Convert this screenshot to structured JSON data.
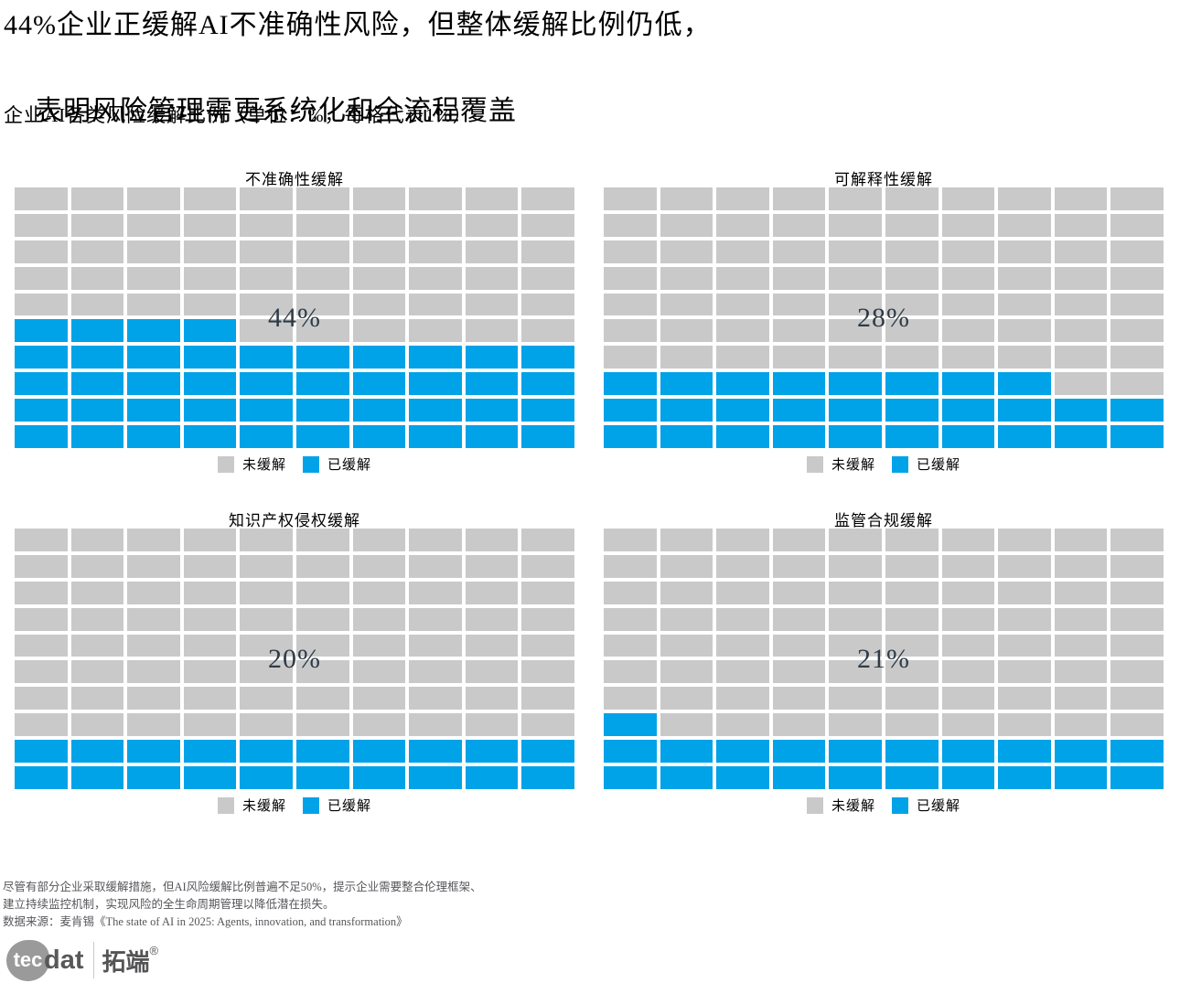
{
  "page": {
    "title_line1": "44%企业正缓解AI不准确性风险，但整体缓解比例仍低，",
    "title_line2": "表明风险管理需更系统化和全流程覆盖",
    "subtitle": "企业AI各类风险缓解比例（单位：%，每格代表1%）"
  },
  "chart_data": {
    "type": "waffle",
    "title": "企业AI各类风险缓解比例",
    "unit_note": "单位：%，每格代表1%",
    "grid": {
      "rows": 10,
      "cols": 10,
      "total_cells_per_chart": 100
    },
    "fill_rule": "bottom-up, left-to-right",
    "colors": {
      "mitigated": "#00A2E8",
      "unmitigated": "#C9C9C9"
    },
    "legend": [
      {
        "label": "未缓解",
        "color": "#C9C9C9"
      },
      {
        "label": "已缓解",
        "color": "#00A2E8"
      }
    ],
    "legend_position": "below each waffle, centered",
    "charts": [
      {
        "title": "不准确性缓解",
        "value": 44,
        "label": "44%"
      },
      {
        "title": "可解释性缓解",
        "value": 28,
        "label": "28%"
      },
      {
        "title": "知识产权侵权缓解",
        "value": 20,
        "label": "20%"
      },
      {
        "title": "监管合规缓解",
        "value": 21,
        "label": "21%"
      }
    ]
  },
  "footer": {
    "note_line1": "尽管有部分企业采取缓解措施，但AI风险缓解比例普遍不足50%，提示企业需要整合伦理框架、",
    "note_line2": "建立持续监控机制，实现风险的全生命周期管理以降低潜在损失。",
    "source": "数据来源：麦肯锡《The state of AI in 2025: Agents, innovation, and transformation》"
  },
  "logo": {
    "bubble_text": "tec",
    "wordmark": "dat",
    "brand": "拓端",
    "registered": "®"
  }
}
